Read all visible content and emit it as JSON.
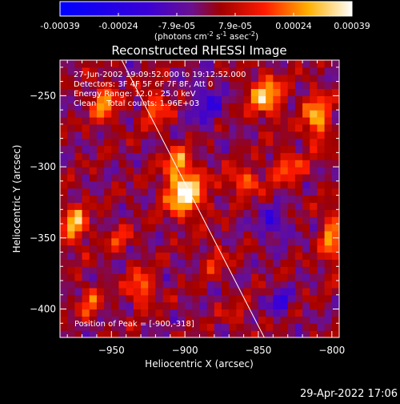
{
  "colorbar": {
    "ticks": [
      "-0.00039",
      "-0.00024",
      "-7.9e-05",
      "7.9e-05",
      "0.00024",
      "0.00039"
    ],
    "unit_main": "(photons cm",
    "unit_sup1": "-2",
    "unit_mid1": " s",
    "unit_sup2": "-1",
    "unit_mid2": " asec",
    "unit_sup3": "-2",
    "unit_end": ")"
  },
  "chart_data": {
    "type": "heatmap",
    "title": "Reconstructed RHESSI Image",
    "xlabel": "Heliocentric X (arcsec)",
    "ylabel": "Heliocentric Y (arcsec)",
    "xlim": [
      -985,
      -795
    ],
    "ylim": [
      -420,
      -225
    ],
    "x_ticks": [
      -950,
      -900,
      -850,
      -800
    ],
    "y_ticks": [
      -250,
      -300,
      -350,
      -400
    ],
    "x_tick_labels": [
      "−950",
      "−900",
      "−850",
      "−800"
    ],
    "y_tick_labels": [
      "−250",
      "−300",
      "−350",
      "−400"
    ],
    "color_range": [
      -0.00039,
      0.00039
    ],
    "colormap": "blue-purple-red-yellow-white",
    "annotations": [
      "27-Jun-2002 19:09:52.000 to 19:12:52.000",
      "Detectors: 3F 4F 5F 6F 7F 8F, Att 0",
      "Energy Range: 12.0 - 25.0 keV",
      "Clean    Total counts: 1.96E+03"
    ],
    "peak_label": "Position of Peak = [-900,-318]",
    "peak": [
      -900,
      -318
    ],
    "sources": [
      {
        "x": -900,
        "y": -318,
        "sx": 9,
        "sy": 11,
        "amp": 1.0
      },
      {
        "x": -905,
        "y": -296,
        "sx": 6,
        "sy": 7,
        "amp": 0.55
      },
      {
        "x": -975,
        "y": -340,
        "sx": 6,
        "sy": 10,
        "amp": 0.7
      },
      {
        "x": -955,
        "y": -255,
        "sx": 6,
        "sy": 10,
        "amp": 0.6
      },
      {
        "x": -920,
        "y": -258,
        "sx": 6,
        "sy": 9,
        "amp": 0.5
      },
      {
        "x": -845,
        "y": -250,
        "sx": 8,
        "sy": 10,
        "amp": 0.75
      },
      {
        "x": -810,
        "y": -265,
        "sx": 6,
        "sy": 12,
        "amp": 0.7
      },
      {
        "x": -830,
        "y": -300,
        "sx": 8,
        "sy": 8,
        "amp": 0.45
      },
      {
        "x": -860,
        "y": -310,
        "sx": 8,
        "sy": 6,
        "amp": 0.55
      },
      {
        "x": -800,
        "y": -350,
        "sx": 5,
        "sy": 14,
        "amp": 0.6
      },
      {
        "x": -930,
        "y": -385,
        "sx": 6,
        "sy": 8,
        "amp": 0.6
      },
      {
        "x": -965,
        "y": -395,
        "sx": 5,
        "sy": 8,
        "amp": 0.45
      },
      {
        "x": -945,
        "y": -350,
        "sx": 6,
        "sy": 6,
        "amp": 0.35
      },
      {
        "x": -880,
        "y": -365,
        "sx": 6,
        "sy": 8,
        "amp": 0.3
      },
      {
        "x": -865,
        "y": -405,
        "sx": 6,
        "sy": 6,
        "amp": 0.25
      },
      {
        "x": -835,
        "y": -395,
        "sx": 5,
        "sy": 6,
        "amp": -0.5
      },
      {
        "x": -840,
        "y": -340,
        "sx": 7,
        "sy": 8,
        "amp": -0.45
      },
      {
        "x": -885,
        "y": -255,
        "sx": 8,
        "sy": 12,
        "amp": -0.4
      }
    ],
    "limb_line": {
      "x": [
        -943,
        -846
      ],
      "y": [
        -225,
        -420
      ]
    }
  },
  "footer": {
    "date": "29-Apr-2022 17:06"
  }
}
